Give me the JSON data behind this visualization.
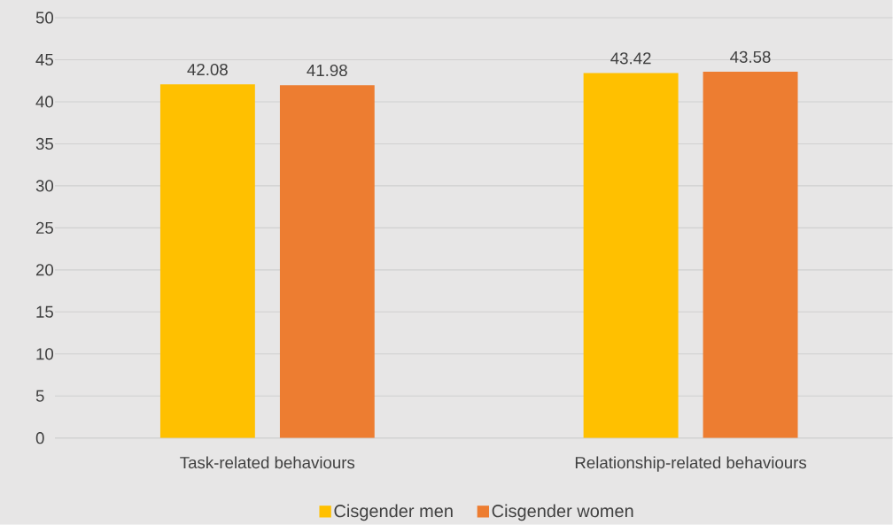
{
  "chart_data": {
    "type": "bar",
    "categories": [
      "Task-related behaviours",
      "Relationship-related behaviours"
    ],
    "series": [
      {
        "name": "Cisgender men",
        "color": "#ffc000",
        "values": [
          42.08,
          43.42
        ]
      },
      {
        "name": "Cisgender women",
        "color": "#ed7d31",
        "values": [
          41.98,
          43.58
        ]
      }
    ],
    "ylim": [
      0,
      50
    ],
    "yticks": [
      0,
      5,
      10,
      15,
      20,
      25,
      30,
      35,
      40,
      45,
      50
    ],
    "grid": "y",
    "legend": "bottom",
    "data_labels": true
  }
}
